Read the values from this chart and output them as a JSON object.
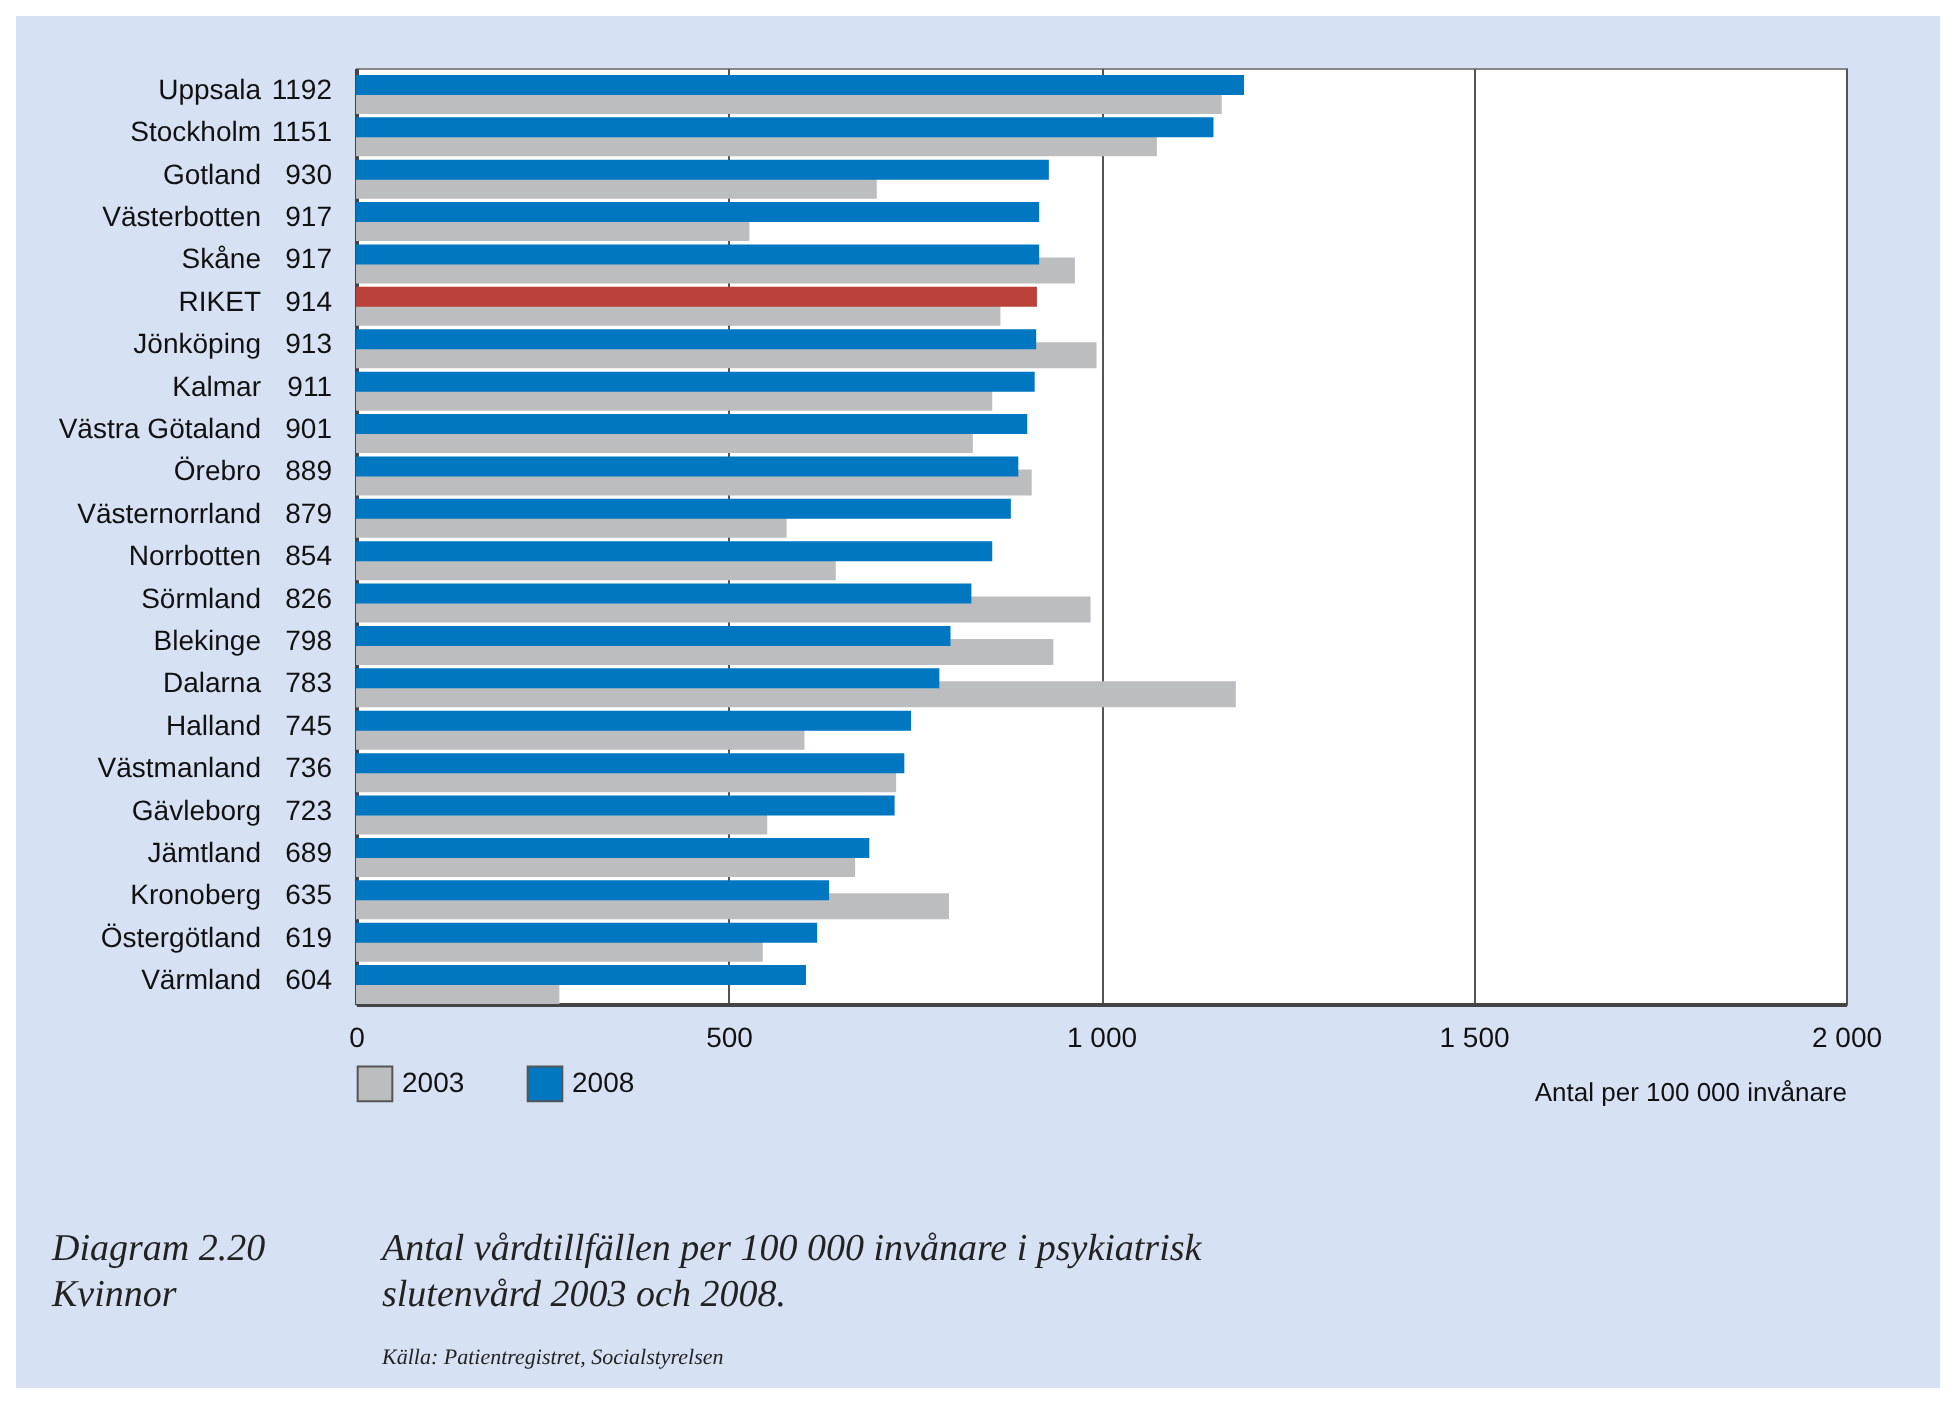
{
  "chart_data": {
    "type": "bar",
    "orientation": "horizontal",
    "title": "Antal vårdtillfällen per 100 000 invånare i psykiatrisk slutenvård 2003 och 2008.",
    "xlabel": "Antal per 100 000 invånare",
    "annotations": [
      "Diagram 2.20",
      "Kvinnor",
      "Källa: Patientregistret, Socialstyrelsen"
    ],
    "categories": [
      "Uppsala",
      "Stockholm",
      "Gotland",
      "Västerbotten",
      "Skåne",
      "RIKET",
      "Jönköping",
      "Kalmar",
      "Västra Götaland",
      "Örebro",
      "Västernorrland",
      "Norrbotten",
      "Sörmland",
      "Blekinge",
      "Dalarna",
      "Halland",
      "Västmanland",
      "Gävleborg",
      "Jämtland",
      "Kronoberg",
      "Östergötland",
      "Värmland"
    ],
    "series": [
      {
        "name": "2003",
        "color": "#bcbdbf",
        "values": [
          1162,
          1075,
          699,
          528,
          965,
          865,
          994,
          854,
          828,
          907,
          578,
          644,
          986,
          936,
          1181,
          602,
          725,
          552,
          670,
          796,
          546,
          273
        ]
      },
      {
        "name": "2008",
        "color": "#0077c0",
        "colors": [
          "#0077c0",
          "#0077c0",
          "#0077c0",
          "#0077c0",
          "#0077c0",
          "#b94139",
          "#0077c0",
          "#0077c0",
          "#0077c0",
          "#0077c0",
          "#0077c0",
          "#0077c0",
          "#0077c0",
          "#0077c0",
          "#0077c0",
          "#0077c0",
          "#0077c0",
          "#0077c0",
          "#0077c0",
          "#0077c0",
          "#0077c0",
          "#0077c0"
        ],
        "values": [
          1192,
          1151,
          930,
          917,
          917,
          914,
          913,
          911,
          901,
          889,
          879,
          854,
          826,
          798,
          783,
          745,
          736,
          723,
          689,
          635,
          619,
          604
        ],
        "value_labels": [
          "1192",
          "1151",
          "930",
          "917",
          "917",
          "914",
          "913",
          "911",
          "901",
          "889",
          "879",
          "854",
          "826",
          "798",
          "783",
          "745",
          "736",
          "723",
          "689",
          "635",
          "619",
          "604"
        ]
      }
    ],
    "xlim": [
      0,
      2000
    ],
    "xticks": [
      0,
      500,
      {
        "value": 1000,
        "label": "1 000"
      },
      {
        "value": 1500,
        "label": "1 500"
      },
      {
        "value": 2000,
        "label": "2 000"
      }
    ],
    "grid": "x",
    "legend": "bottom left"
  }
}
